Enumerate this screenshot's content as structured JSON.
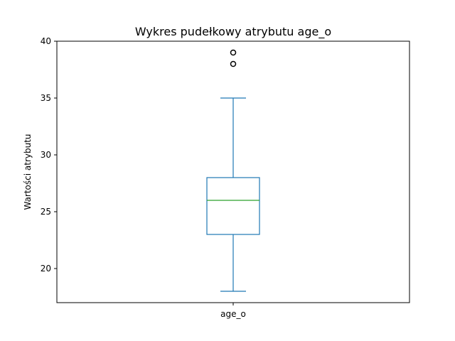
{
  "chart_data": {
    "type": "box",
    "title": "Wykres pudełkowy atrybutu age_o",
    "xlabel": "",
    "ylabel": "Wartości atrybutu",
    "categories": [
      "age_o"
    ],
    "ylim": [
      17,
      40
    ],
    "yticks": [
      20,
      25,
      30,
      35,
      40
    ],
    "grid": false,
    "series": [
      {
        "category": "age_o",
        "whisker_low": 18,
        "q1": 23,
        "median": 26,
        "q3": 28,
        "whisker_high": 35,
        "outliers": [
          38,
          39
        ]
      }
    ],
    "colors": {
      "box": "#1f77b4",
      "median": "#2ca02c",
      "outlier": "#000000"
    }
  }
}
